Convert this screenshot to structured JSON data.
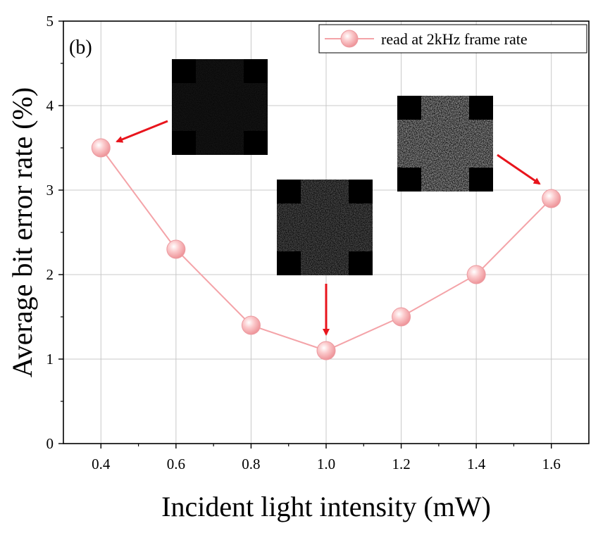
{
  "chart_data": {
    "type": "line",
    "panel_label": "(b)",
    "xlabel": "Incident light intensity (mW)",
    "ylabel": "Average bit error rate (%)",
    "xlim": [
      0.3,
      1.7
    ],
    "ylim": [
      0,
      5
    ],
    "x_ticks": [
      "0.4",
      "0.6",
      "0.8",
      "1.0",
      "1.2",
      "1.4",
      "1.6"
    ],
    "y_ticks": [
      "0",
      "1",
      "2",
      "3",
      "4",
      "5"
    ],
    "grid": true,
    "legend_position": "top-right",
    "series": [
      {
        "name": "read at 2kHz frame rate",
        "color": "#f4a3a8",
        "x": [
          0.4,
          0.6,
          0.8,
          1.0,
          1.2,
          1.4,
          1.6
        ],
        "y": [
          3.5,
          2.3,
          1.4,
          1.1,
          1.5,
          2.0,
          2.9
        ]
      }
    ],
    "insets": [
      {
        "brightness": "dark",
        "points_to": {
          "x": 0.4,
          "y": 3.5
        }
      },
      {
        "brightness": "medium",
        "points_to": {
          "x": 1.0,
          "y": 1.1
        }
      },
      {
        "brightness": "bright",
        "points_to": {
          "x": 1.6,
          "y": 2.9
        }
      }
    ],
    "arrow_color": "#e8141c"
  }
}
